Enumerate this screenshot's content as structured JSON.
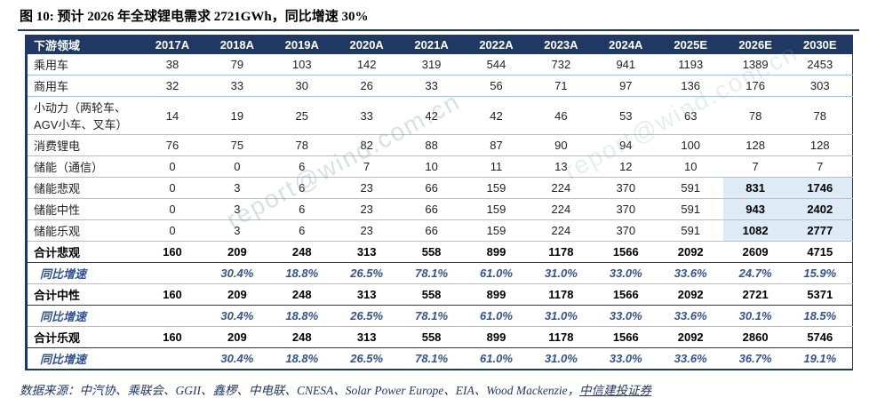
{
  "title": "图 10: 预计 2026 年全球锂电需求 2721GWh，同比增速 30%",
  "watermark": "report@wind.com.cn",
  "source_note": {
    "prefix": "数据来源：中汽协、乘联会、GGII、鑫椤、中电联、CNESA、Solar Power Europe、EIA、Wood Mackenzie，",
    "link": "中信建投证券"
  },
  "colors": {
    "header_bg": "#1F3864",
    "header_text": "#FFFFFF",
    "frame": "#1F3864",
    "row_line": "#9DC3E6",
    "total_line": "#C00000",
    "growth_text": "#2E5496",
    "highlight_bg": "#DEEAF6",
    "source_text": "#1F3864"
  },
  "chart_data": {
    "type": "table",
    "columns": [
      "下游领域",
      "2017A",
      "2018A",
      "2019A",
      "2020A",
      "2021A",
      "2022A",
      "2023A",
      "2024A",
      "2025E",
      "2026E",
      "2030E"
    ],
    "rows": [
      {
        "label": "乘用车",
        "type": "normal",
        "values": [
          "38",
          "79",
          "103",
          "142",
          "319",
          "544",
          "732",
          "941",
          "1193",
          "1389",
          "2453"
        ]
      },
      {
        "label": "商用车",
        "type": "normal",
        "values": [
          "32",
          "33",
          "30",
          "26",
          "33",
          "56",
          "71",
          "97",
          "136",
          "176",
          "303"
        ]
      },
      {
        "label": "小动力（两轮车、AGV小车、叉车）",
        "type": "normal",
        "values": [
          "14",
          "19",
          "25",
          "33",
          "42",
          "42",
          "46",
          "53",
          "63",
          "78",
          "78"
        ]
      },
      {
        "label": "消费锂电",
        "type": "normal",
        "values": [
          "76",
          "75",
          "78",
          "82",
          "88",
          "87",
          "90",
          "94",
          "100",
          "128",
          "128"
        ]
      },
      {
        "label": "储能（通信）",
        "type": "normal",
        "values": [
          "0",
          "0",
          "6",
          "7",
          "10",
          "11",
          "13",
          "12",
          "10",
          "7",
          "7"
        ]
      },
      {
        "label": "储能悲观",
        "type": "normal",
        "highlight_last2": true,
        "values": [
          "0",
          "3",
          "6",
          "23",
          "66",
          "159",
          "224",
          "370",
          "591",
          "831",
          "1746"
        ]
      },
      {
        "label": "储能中性",
        "type": "normal",
        "highlight_last2": true,
        "values": [
          "0",
          "3",
          "6",
          "23",
          "66",
          "159",
          "224",
          "370",
          "591",
          "943",
          "2402"
        ]
      },
      {
        "label": "储能乐观",
        "type": "normal",
        "highlight_last2": true,
        "values": [
          "0",
          "3",
          "6",
          "23",
          "66",
          "159",
          "224",
          "370",
          "591",
          "1082",
          "2777"
        ]
      },
      {
        "label": "合计悲观",
        "type": "total",
        "values": [
          "160",
          "209",
          "248",
          "313",
          "558",
          "899",
          "1178",
          "1566",
          "2092",
          "2609",
          "4715"
        ]
      },
      {
        "label": "同比增速",
        "type": "growth",
        "values": [
          "",
          "30.4%",
          "18.8%",
          "26.5%",
          "78.1%",
          "61.0%",
          "31.0%",
          "33.0%",
          "33.6%",
          "24.7%",
          "15.9%"
        ]
      },
      {
        "label": "合计中性",
        "type": "total",
        "values": [
          "160",
          "209",
          "248",
          "313",
          "558",
          "899",
          "1178",
          "1566",
          "2092",
          "2721",
          "5371"
        ]
      },
      {
        "label": "同比增速",
        "type": "growth",
        "values": [
          "",
          "30.4%",
          "18.8%",
          "26.5%",
          "78.1%",
          "61.0%",
          "31.0%",
          "33.0%",
          "33.6%",
          "30.1%",
          "18.5%"
        ]
      },
      {
        "label": "合计乐观",
        "type": "total",
        "values": [
          "160",
          "209",
          "248",
          "313",
          "558",
          "899",
          "1178",
          "1566",
          "2092",
          "2860",
          "5746"
        ]
      },
      {
        "label": "同比增速",
        "type": "growth",
        "values": [
          "",
          "30.4%",
          "18.8%",
          "26.5%",
          "78.1%",
          "61.0%",
          "31.0%",
          "33.0%",
          "33.6%",
          "36.7%",
          "19.1%"
        ]
      }
    ]
  }
}
